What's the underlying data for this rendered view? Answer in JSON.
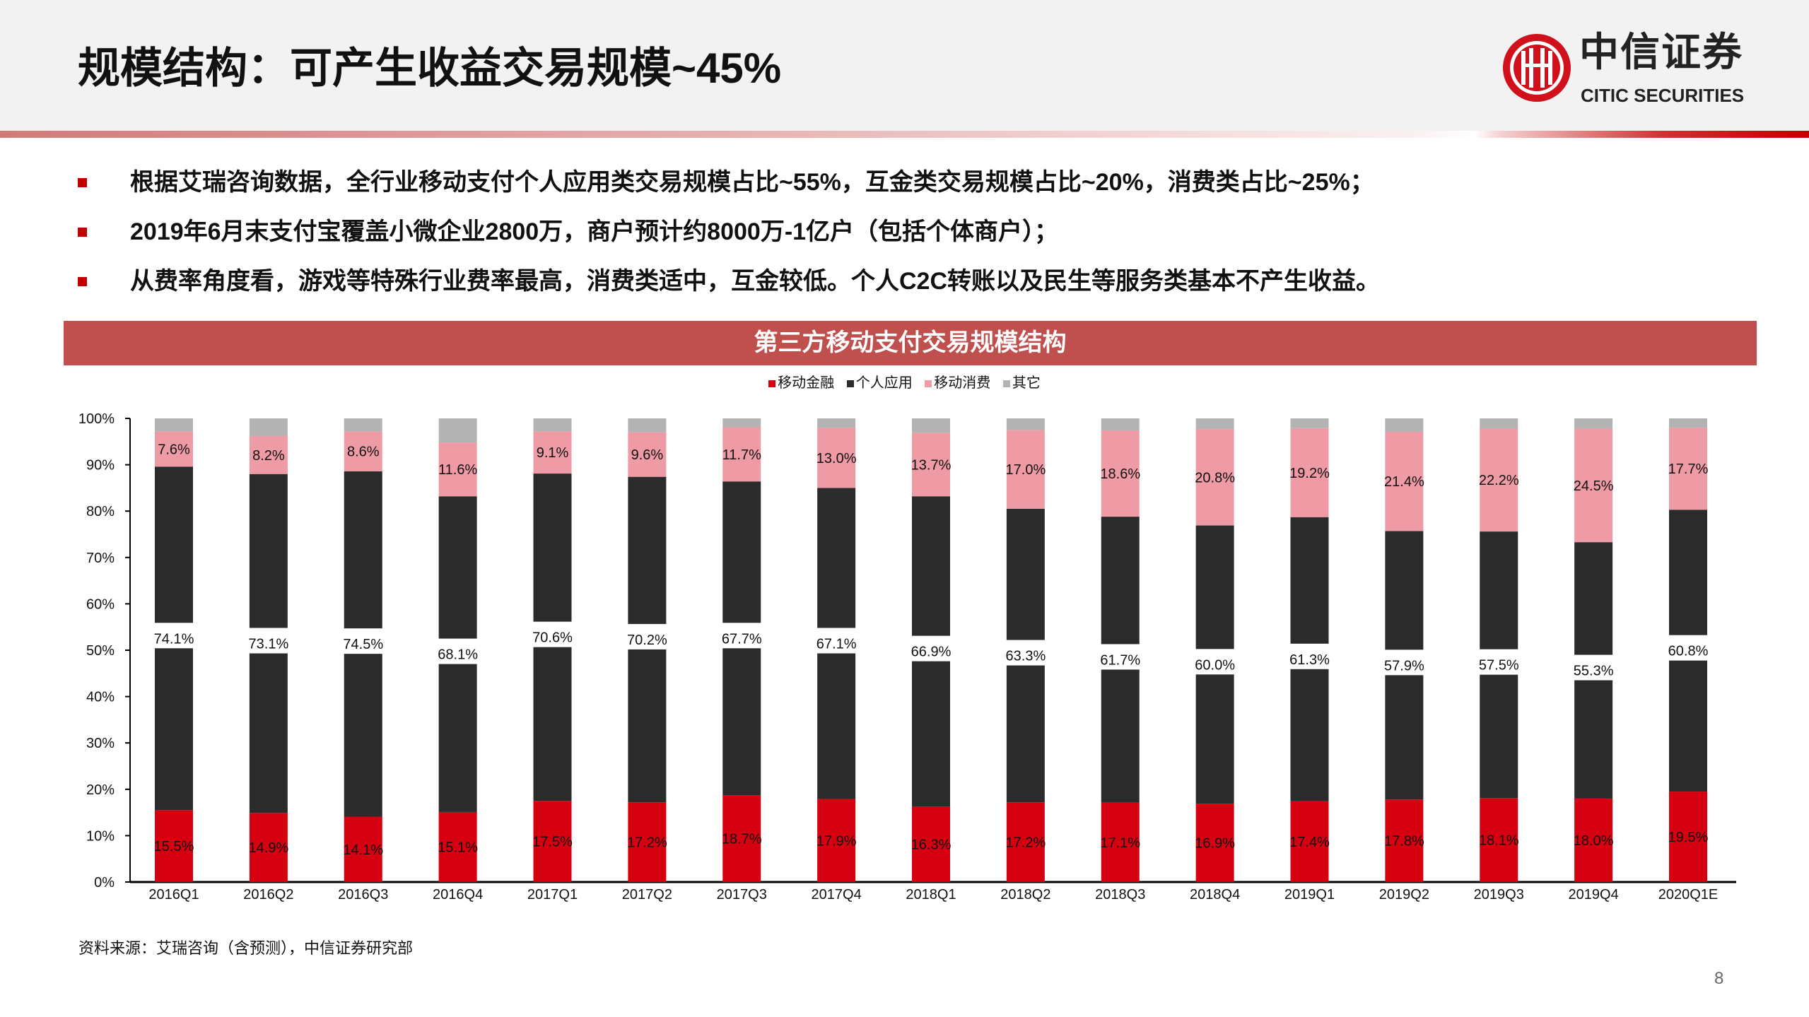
{
  "header": {
    "title": "规模结构：可产生收益交易规模~45%",
    "logo_cn": "中信证券",
    "logo_en": "CITIC SECURITIES"
  },
  "bullets": [
    "根据艾瑞咨询数据，全行业移动支付个人应用类交易规模占比~55%，互金类交易规模占比~20%，消费类占比~25%；",
    "2019年6月末支付宝覆盖小微企业2800万，商户预计约8000万-1亿户（包括个体商户）；",
    "从费率角度看，游戏等特殊行业费率最高，消费类适中，互金较低。个人C2C转账以及民生等服务类基本不产生收益。"
  ],
  "colors": {
    "accent": "#c00000",
    "title_band": "#c0504d"
  },
  "chart_data": {
    "type": "bar",
    "stacked": true,
    "title": "第三方移动支付交易规模结构",
    "ylim": [
      0,
      100
    ],
    "yticks": [
      "0%",
      "10%",
      "20%",
      "30%",
      "40%",
      "50%",
      "60%",
      "70%",
      "80%",
      "90%",
      "100%"
    ],
    "legend_position": "top",
    "grid": false,
    "categories": [
      "2016Q1",
      "2016Q2",
      "2016Q3",
      "2016Q4",
      "2017Q1",
      "2017Q2",
      "2017Q3",
      "2017Q4",
      "2018Q1",
      "2018Q2",
      "2018Q3",
      "2018Q4",
      "2019Q1",
      "2019Q2",
      "2019Q3",
      "2019Q4",
      "2020Q1E"
    ],
    "series": [
      {
        "name": "移动金融",
        "color": "#d50010",
        "values": [
          15.5,
          14.9,
          14.1,
          15.1,
          17.5,
          17.2,
          18.7,
          17.9,
          16.3,
          17.2,
          17.1,
          16.9,
          17.4,
          17.8,
          18.1,
          18.0,
          19.5
        ]
      },
      {
        "name": "个人应用",
        "color": "#2b2b2b",
        "values": [
          74.1,
          73.1,
          74.5,
          68.1,
          70.6,
          70.2,
          67.7,
          67.1,
          66.9,
          63.3,
          61.7,
          60.0,
          61.3,
          57.9,
          57.5,
          55.3,
          60.8
        ]
      },
      {
        "name": "移动消费",
        "color": "#ef9ba6",
        "values": [
          7.6,
          8.2,
          8.6,
          11.6,
          9.1,
          9.6,
          11.7,
          13.0,
          13.7,
          17.0,
          18.6,
          20.8,
          19.2,
          21.4,
          22.2,
          24.5,
          17.7
        ]
      },
      {
        "name": "其它",
        "color": "#b3b3b3"
      }
    ]
  },
  "footer": {
    "source": "资料来源：艾瑞咨询（含预测），中信证券研究部",
    "page": "8"
  }
}
